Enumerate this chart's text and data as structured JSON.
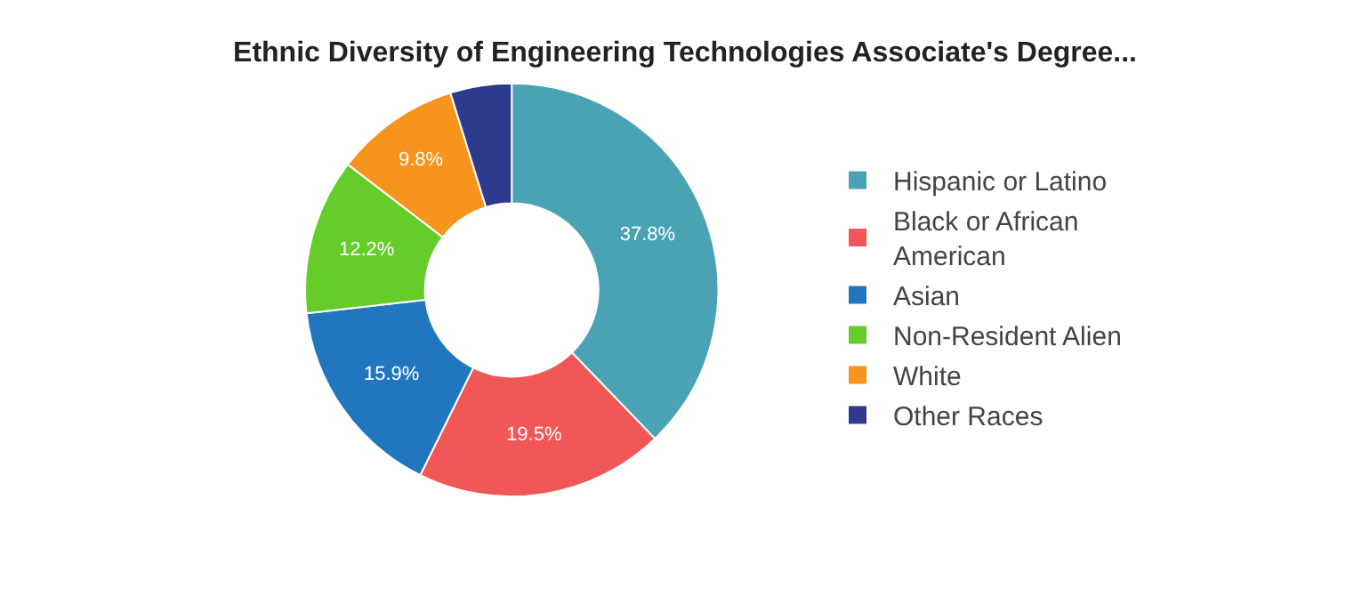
{
  "chart_data": {
    "type": "donut",
    "title": "Ethnic Diversity of Engineering Technologies Associate's Degree...",
    "categories": [
      "Hispanic or Latino",
      "Black or African American",
      "Asian",
      "Non-Resident Alien",
      "White",
      "Other Races"
    ],
    "values": [
      37.8,
      19.5,
      15.9,
      12.2,
      9.8,
      4.8
    ],
    "value_labels": [
      "37.8%",
      "19.5%",
      "15.9%",
      "12.2%",
      "9.8%",
      null
    ],
    "colors": [
      "#4aa3b5",
      "#f25757",
      "#2176bd",
      "#66cc29",
      "#f7941d",
      "#2e3a8c"
    ],
    "legend": "right"
  }
}
